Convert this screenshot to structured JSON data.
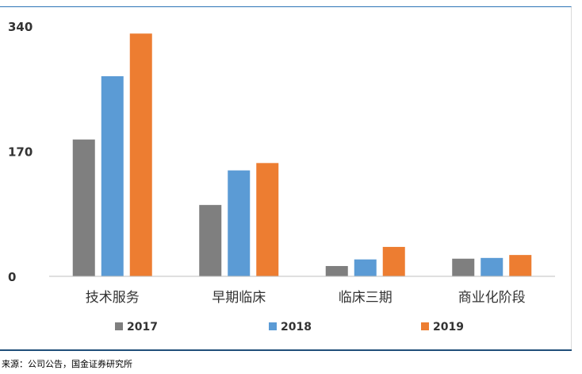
{
  "chart_data": {
    "type": "bar",
    "title": "",
    "xlabel": "",
    "ylabel": "",
    "categories": [
      "技术服务",
      "早期临床",
      "临床三期",
      "商业化阶段"
    ],
    "series": [
      {
        "name": "2017",
        "color": "#7f7f7f",
        "values": [
          186,
          97,
          14,
          24
        ]
      },
      {
        "name": "2018",
        "color": "#5b9bd5",
        "values": [
          272,
          144,
          23,
          25
        ]
      },
      {
        "name": "2019",
        "color": "#ed7d31",
        "values": [
          330,
          154,
          40,
          29
        ]
      }
    ],
    "ylim": [
      0,
      340
    ],
    "yticks": [
      0,
      170,
      340
    ],
    "grid": false,
    "legend": "bottom"
  },
  "source": "来源：公司公告，国金证券研究所"
}
